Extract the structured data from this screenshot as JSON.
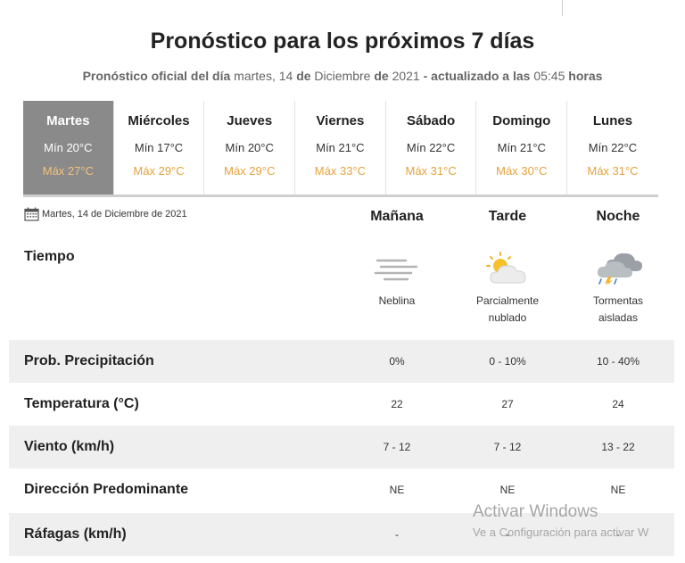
{
  "header": {
    "title": "Pronóstico para los próximos 7 días",
    "subtitle_parts": [
      "Pronóstico oficial del día",
      " martes, 14 ",
      "de",
      " Diciembre ",
      "de",
      " 2021 ",
      "- actualizado a las",
      " 05:45 ",
      "horas"
    ]
  },
  "days": [
    {
      "name": "Martes",
      "min": "Mín 20°C",
      "max": "Máx 27°C",
      "active": true
    },
    {
      "name": "Miércoles",
      "min": "Mín 17°C",
      "max": "Máx 29°C"
    },
    {
      "name": "Jueves",
      "min": "Mín 20°C",
      "max": "Máx 29°C"
    },
    {
      "name": "Viernes",
      "min": "Mín 21°C",
      "max": "Máx 33°C"
    },
    {
      "name": "Sábado",
      "min": "Mín 22°C",
      "max": "Máx 31°C"
    },
    {
      "name": "Domingo",
      "min": "Mín 21°C",
      "max": "Máx 30°C"
    },
    {
      "name": "Lunes",
      "min": "Mín 22°C",
      "max": "Máx 31°C"
    }
  ],
  "detail": {
    "date": "Martes, 14 de Diciembre de 2021",
    "periods": [
      "Mañana",
      "Tarde",
      "Noche"
    ],
    "tiempo_label": "Tiempo",
    "weather": [
      {
        "icon": "fog-icon",
        "desc_line1": "Neblina",
        "desc_line2": ""
      },
      {
        "icon": "partly-cloudy-icon",
        "desc_line1": "Parcialmente",
        "desc_line2": "nublado"
      },
      {
        "icon": "thunderstorm-icon",
        "desc_line1": "Tormentas",
        "desc_line2": "aisladas"
      }
    ],
    "rows": [
      {
        "label": "Prob. Precipitación",
        "values": [
          "0%",
          "0 - 10%",
          "10 - 40%"
        ]
      },
      {
        "label": "Temperatura (°C)",
        "values": [
          "22",
          "27",
          "24"
        ]
      },
      {
        "label": "Viento (km/h)",
        "values": [
          "7 - 12",
          "7 - 12",
          "13 - 22"
        ]
      },
      {
        "label": "Dirección Predominante",
        "values": [
          "NE",
          "NE",
          "NE"
        ]
      },
      {
        "label": "Ráfagas (km/h)",
        "values": [
          "-",
          "-",
          "-"
        ]
      }
    ]
  },
  "watermark": {
    "line1": "Activar Windows",
    "line2": "Ve a Configuración para activar W"
  },
  "colors": {
    "active_day_bg": "#8a8a8a",
    "max_temp": "#e3a23c",
    "row_shade": "#efefef"
  }
}
